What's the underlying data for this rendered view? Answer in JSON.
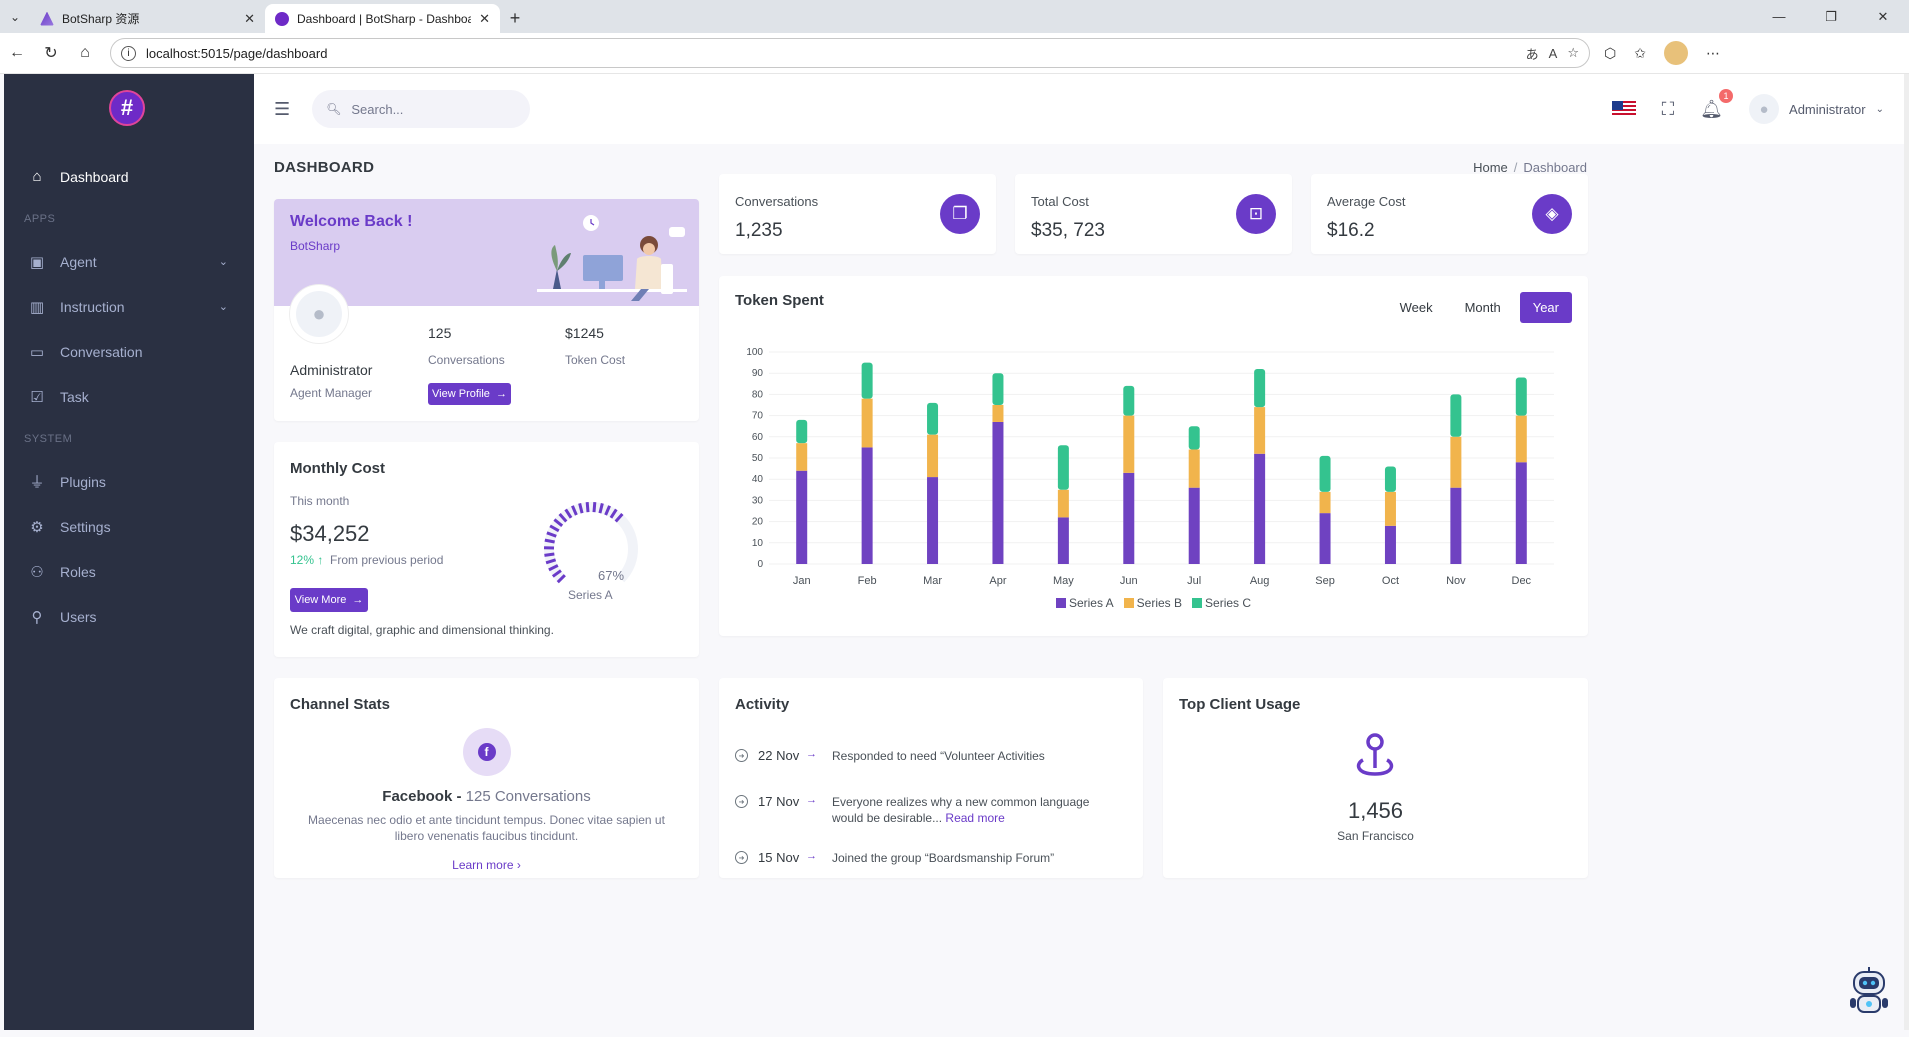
{
  "browser": {
    "tabs": [
      {
        "title": "BotSharp 资源",
        "active": false
      },
      {
        "title": "Dashboard | BotSharp - Dashboard",
        "active": true
      }
    ],
    "url": "localhost:5015/page/dashboard"
  },
  "colors": {
    "accent": "#6a3bc8",
    "sidebar": "#2a3042",
    "series_a": "#6f42c1",
    "series_b": "#f1b44c",
    "series_c": "#34c38f"
  },
  "sidebar": {
    "dashboard": "Dashboard",
    "apps_title": "APPS",
    "system_title": "SYSTEM",
    "items": [
      {
        "label": "Agent",
        "icon": "bot-icon"
      },
      {
        "label": "Instruction",
        "icon": "book-icon"
      },
      {
        "label": "Conversation",
        "icon": "chat-icon"
      },
      {
        "label": "Task",
        "icon": "task-icon"
      },
      {
        "label": "Plugins",
        "icon": "plug-icon"
      },
      {
        "label": "Settings",
        "icon": "gear-icon"
      },
      {
        "label": "Roles",
        "icon": "roles-icon"
      },
      {
        "label": "Users",
        "icon": "user-icon"
      }
    ]
  },
  "topbar": {
    "search_placeholder": "Search...",
    "notification_count": "1",
    "user_name": "Administrator"
  },
  "page": {
    "title": "DASHBOARD",
    "breadcrumb": [
      "Home",
      "Dashboard"
    ]
  },
  "welcome": {
    "title": "Welcome Back !",
    "subtitle": "BotSharp",
    "name": "Administrator",
    "role": "Agent Manager",
    "stat1_value": "125",
    "stat1_label": "Conversations",
    "stat2_value": "$1245",
    "stat2_label": "Token Cost",
    "button": "View Profile"
  },
  "stats": [
    {
      "label": "Conversations",
      "value": "1,235"
    },
    {
      "label": "Total Cost",
      "value": "$35, 723"
    },
    {
      "label": "Average Cost",
      "value": "$16.2"
    }
  ],
  "token": {
    "title": "Token Spent",
    "tabs": [
      "Week",
      "Month",
      "Year"
    ],
    "active_tab": "Year"
  },
  "chart_data": {
    "type": "bar",
    "stacked": true,
    "categories": [
      "Jan",
      "Feb",
      "Mar",
      "Apr",
      "May",
      "Jun",
      "Jul",
      "Aug",
      "Sep",
      "Oct",
      "Nov",
      "Dec"
    ],
    "series": [
      {
        "name": "Series A",
        "values": [
          44,
          55,
          41,
          67,
          22,
          43,
          36,
          52,
          24,
          18,
          36,
          48
        ]
      },
      {
        "name": "Series B",
        "values": [
          13,
          23,
          20,
          8,
          13,
          27,
          18,
          22,
          10,
          16,
          24,
          22
        ]
      },
      {
        "name": "Series C",
        "values": [
          11,
          17,
          15,
          15,
          21,
          14,
          11,
          18,
          17,
          12,
          20,
          18
        ]
      }
    ],
    "yticks": [
      "0",
      "10",
      "20",
      "30",
      "40",
      "50",
      "60",
      "70",
      "80",
      "90",
      "100"
    ],
    "ylim": [
      0,
      100
    ],
    "legend": "bottom-center",
    "grid": true
  },
  "monthly": {
    "title": "Monthly Cost",
    "label": "This month",
    "value": "$34,252",
    "change": "12%",
    "change_text": "From previous period",
    "button": "View More",
    "text": "We craft digital, graphic and dimensional thinking.",
    "gauge_percent": 67,
    "gauge_label": "67%",
    "gauge_series": "Series A"
  },
  "channel": {
    "title": "Channel Stats",
    "name": "Facebook -",
    "count": "125 Conversations",
    "description": "Maecenas nec odio et ante tincidunt tempus. Donec vitae sapien ut libero venenatis faucibus tincidunt.",
    "link": "Learn more"
  },
  "activity": {
    "title": "Activity",
    "items": [
      {
        "date": "22 Nov",
        "text": "Responded to need “Volunteer Activities",
        "more": ""
      },
      {
        "date": "17 Nov",
        "text": "Everyone realizes why a new common language would be desirable...",
        "more": "Read more"
      },
      {
        "date": "15 Nov",
        "text": "Joined the group “Boardsmanship Forum”",
        "more": ""
      }
    ]
  },
  "client": {
    "title": "Top Client Usage",
    "value": "1,456",
    "city": "San Francisco"
  }
}
